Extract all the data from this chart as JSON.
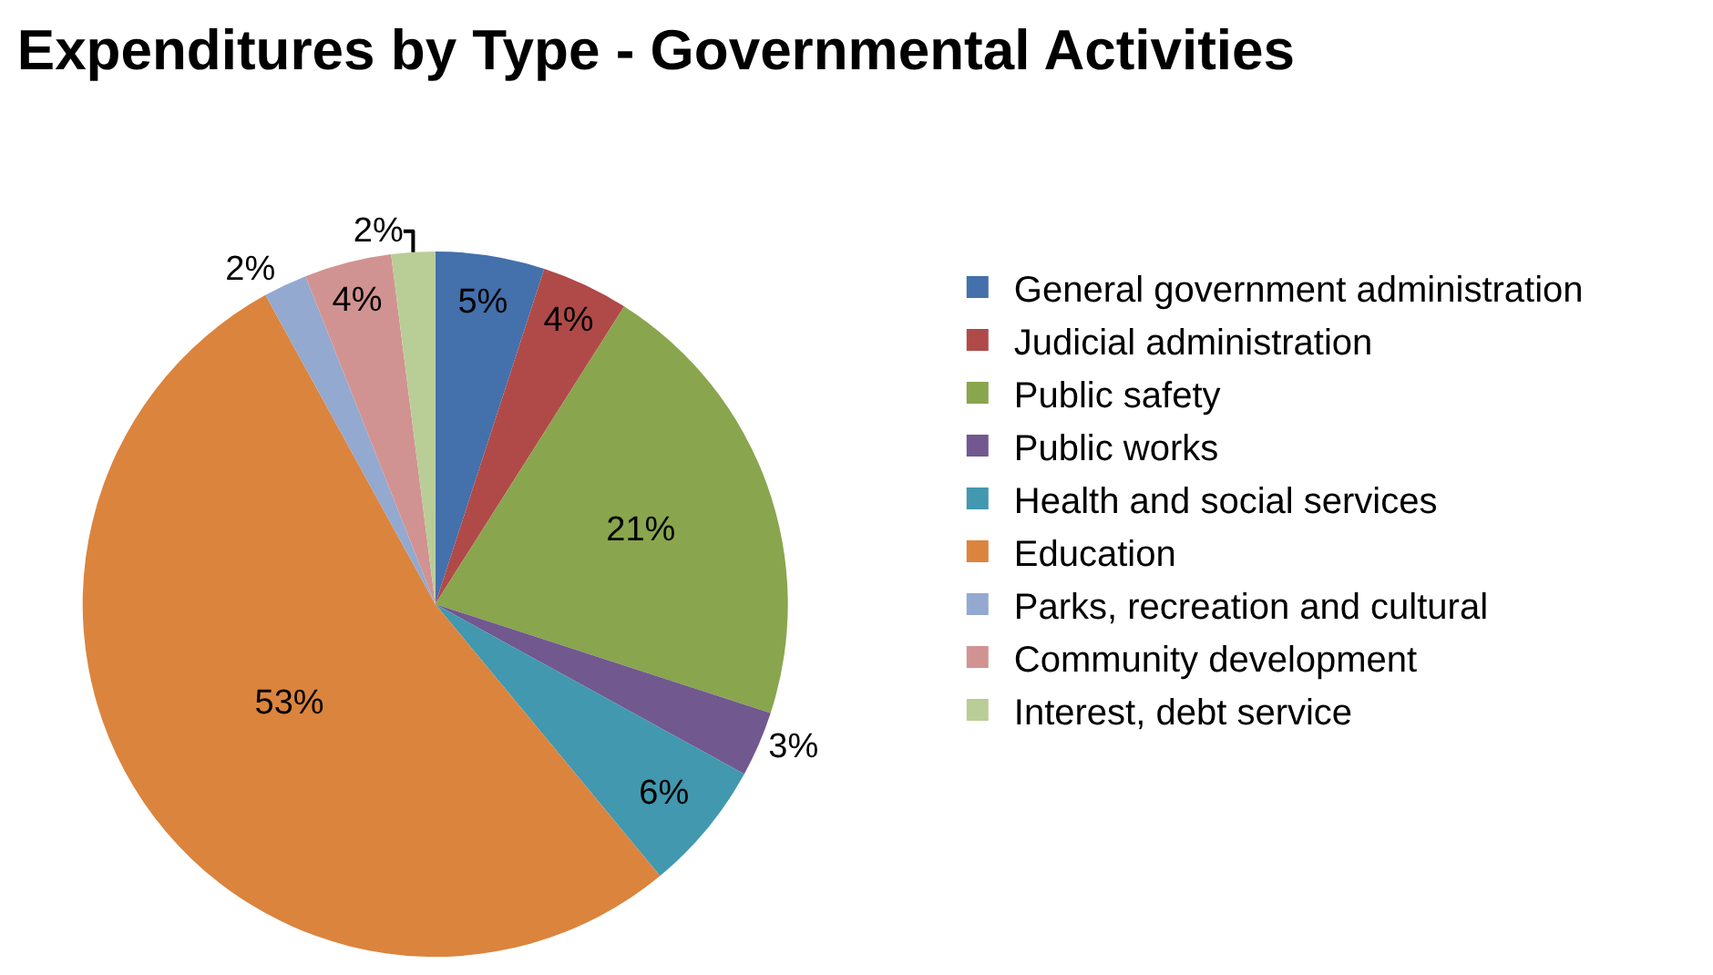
{
  "chart_data": {
    "type": "pie",
    "title": "Expenditures by Type - Governmental Activities",
    "categories": [
      "General government administration",
      "Judicial administration",
      "Public safety",
      "Public works",
      "Health and social services",
      "Education",
      "Parks, recreation and cultural",
      "Community development",
      "Interest, debt service"
    ],
    "values": [
      5,
      4,
      21,
      3,
      6,
      53,
      2,
      4,
      2
    ],
    "value_labels": [
      "5%",
      "4%",
      "21%",
      "3%",
      "6%",
      "53%",
      "2%",
      "4%",
      "2%"
    ],
    "colors": [
      "#4470ab",
      "#b04a48",
      "#89a54e",
      "#71588f",
      "#4198af",
      "#db843d",
      "#93a9cf",
      "#d19392",
      "#b9cd96"
    ],
    "legend": "right"
  }
}
